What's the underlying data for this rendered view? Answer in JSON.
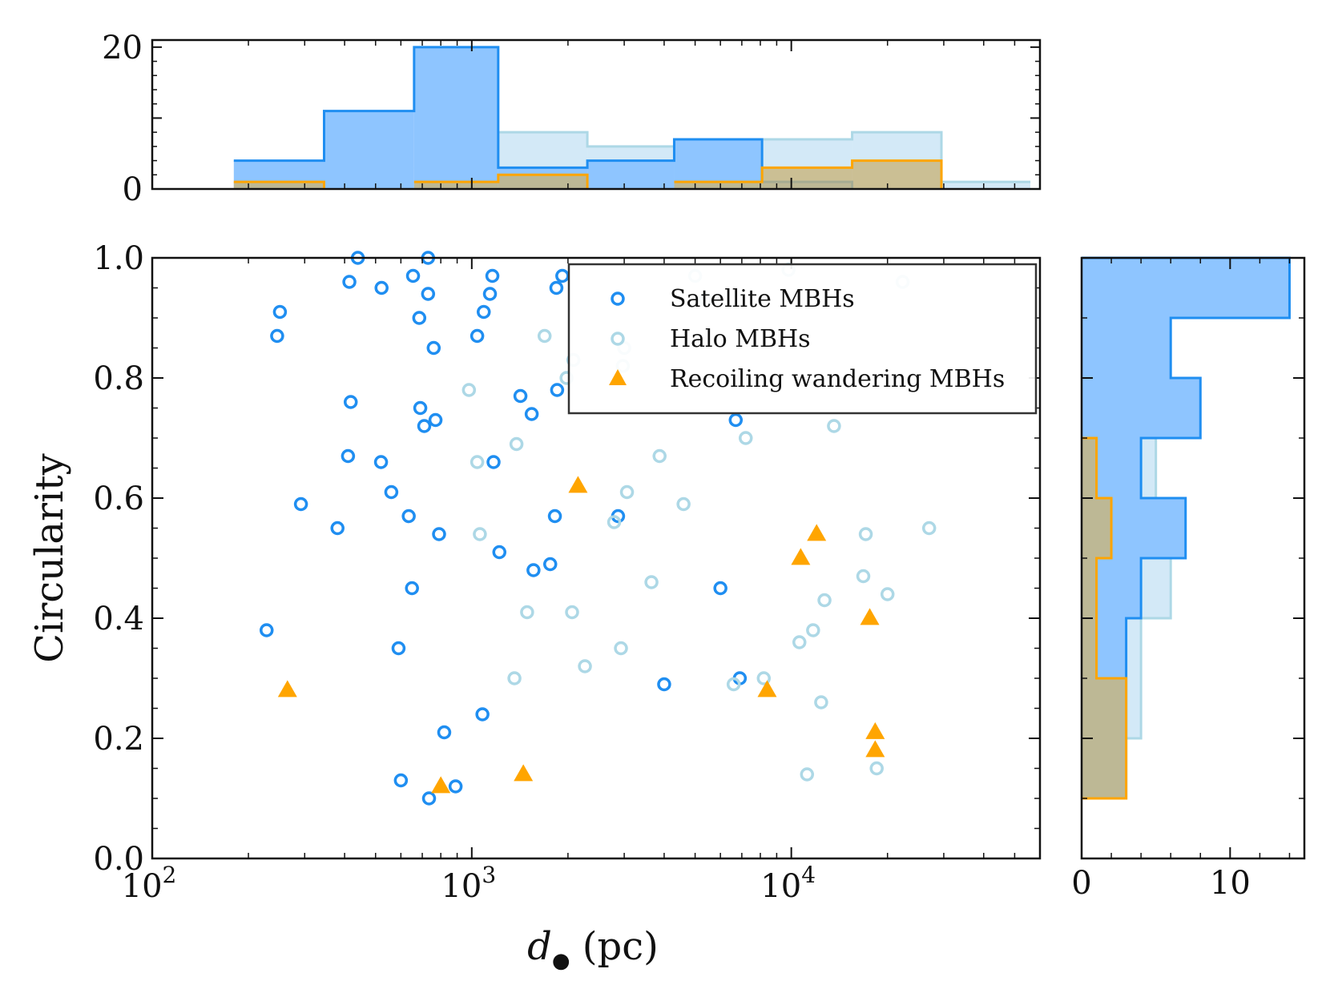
{
  "chart_data": {
    "type": "scatter",
    "layout": "scatter-with-marginal-histograms",
    "xlabel": "d",
    "xlabel_subscript": "●",
    "xlabel_unit": "(pc)",
    "ylabel": "Circularity",
    "xscale": "log",
    "xlim": [
      100,
      60000
    ],
    "ylim": [
      0,
      1
    ],
    "xticks": [
      {
        "value": 100,
        "base": "10",
        "exp": "2"
      },
      {
        "value": 1000,
        "base": "10",
        "exp": "3"
      },
      {
        "value": 10000,
        "base": "10",
        "exp": "4"
      }
    ],
    "yticks": [
      "0.0",
      "0.2",
      "0.4",
      "0.6",
      "0.8",
      "1.0"
    ],
    "colors": {
      "satellite": "#1f8ef1",
      "halo": "#add8e6",
      "recoil": "#ffa500",
      "satellite_fill": "#8ec5ff",
      "halo_fill": "#a8d3f0",
      "recoil_fill": "#c9b47a"
    },
    "legend": {
      "position": "top-right",
      "entries": [
        {
          "label": "Satellite MBHs",
          "marker": "open-circle",
          "color": "#1f8ef1"
        },
        {
          "label": "Halo MBHs",
          "marker": "open-circle",
          "color": "#add8e6"
        },
        {
          "label": "Recoiling wandering MBHs",
          "marker": "filled-triangle",
          "color": "#ffa500"
        }
      ]
    },
    "series": [
      {
        "name": "Satellite MBHs",
        "marker": "open-circle",
        "color": "#1f8ef1",
        "points": [
          [
            228,
            0.38
          ],
          [
            246,
            0.87
          ],
          [
            251,
            0.91
          ],
          [
            292,
            0.59
          ],
          [
            380,
            0.55
          ],
          [
            410,
            0.67
          ],
          [
            414,
            0.96
          ],
          [
            418,
            0.76
          ],
          [
            440,
            1.0
          ],
          [
            520,
            0.66
          ],
          [
            522,
            0.95
          ],
          [
            560,
            0.61
          ],
          [
            590,
            0.35
          ],
          [
            600,
            0.13
          ],
          [
            635,
            0.57
          ],
          [
            650,
            0.45
          ],
          [
            655,
            0.97
          ],
          [
            685,
            0.9
          ],
          [
            690,
            0.75
          ],
          [
            710,
            0.72
          ],
          [
            730,
            1.0
          ],
          [
            730,
            0.94
          ],
          [
            735,
            0.1
          ],
          [
            760,
            0.85
          ],
          [
            770,
            0.73
          ],
          [
            790,
            0.54
          ],
          [
            820,
            0.21
          ],
          [
            890,
            0.12
          ],
          [
            1040,
            0.87
          ],
          [
            1080,
            0.24
          ],
          [
            1090,
            0.91
          ],
          [
            1140,
            0.94
          ],
          [
            1160,
            0.97
          ],
          [
            1170,
            0.66
          ],
          [
            1220,
            0.51
          ],
          [
            1420,
            0.77
          ],
          [
            1540,
            0.74
          ],
          [
            1560,
            0.48
          ],
          [
            1760,
            0.49
          ],
          [
            1820,
            0.57
          ],
          [
            1840,
            0.95
          ],
          [
            1850,
            0.78
          ],
          [
            1920,
            0.97
          ],
          [
            2870,
            0.57
          ],
          [
            4000,
            0.29
          ],
          [
            6000,
            0.45
          ],
          [
            6700,
            0.73
          ],
          [
            6900,
            0.3
          ]
        ]
      },
      {
        "name": "Halo MBHs",
        "marker": "open-circle",
        "color": "#add8e6",
        "points": [
          [
            980,
            0.78
          ],
          [
            1040,
            0.66
          ],
          [
            1060,
            0.54
          ],
          [
            1360,
            0.3
          ],
          [
            1380,
            0.69
          ],
          [
            1490,
            0.41
          ],
          [
            1690,
            0.87
          ],
          [
            1980,
            0.8
          ],
          [
            2060,
            0.41
          ],
          [
            2080,
            0.83
          ],
          [
            2260,
            0.32
          ],
          [
            2790,
            0.56
          ],
          [
            2930,
            0.35
          ],
          [
            2970,
            0.82
          ],
          [
            3000,
            0.85
          ],
          [
            3060,
            0.61
          ],
          [
            3650,
            0.46
          ],
          [
            3870,
            0.67
          ],
          [
            4600,
            0.59
          ],
          [
            5000,
            0.97
          ],
          [
            5400,
            0.93
          ],
          [
            6600,
            0.29
          ],
          [
            7200,
            0.7
          ],
          [
            8200,
            0.3
          ],
          [
            9800,
            0.98
          ],
          [
            10600,
            0.36
          ],
          [
            11200,
            0.14
          ],
          [
            11700,
            0.38
          ],
          [
            12400,
            0.26
          ],
          [
            12700,
            0.43
          ],
          [
            13600,
            0.72
          ],
          [
            16800,
            0.47
          ],
          [
            17100,
            0.54
          ],
          [
            18500,
            0.15
          ],
          [
            20000,
            0.44
          ],
          [
            22300,
            0.96
          ],
          [
            27000,
            0.55
          ]
        ]
      },
      {
        "name": "Recoiling wandering MBHs",
        "marker": "filled-triangle",
        "color": "#ffa500",
        "points": [
          [
            265,
            0.28
          ],
          [
            800,
            0.12
          ],
          [
            1450,
            0.14
          ],
          [
            2150,
            0.62
          ],
          [
            8400,
            0.28
          ],
          [
            10700,
            0.5
          ],
          [
            12000,
            0.54
          ],
          [
            17600,
            0.4
          ],
          [
            18300,
            0.21
          ],
          [
            18300,
            0.18
          ]
        ]
      }
    ],
    "top_histogram": {
      "x_bin_edges": [
        180,
        345,
        660,
        1210,
        2300,
        4300,
        8100,
        15500,
        29500,
        56000
      ],
      "yticks": [
        "0",
        "20"
      ],
      "ylim": [
        0,
        21
      ],
      "series": [
        {
          "name": "Halo MBHs",
          "counts": [
            0,
            0,
            3,
            8,
            6,
            7,
            7,
            8,
            1
          ]
        },
        {
          "name": "Satellite MBHs",
          "counts": [
            4,
            11,
            20,
            3,
            4,
            7,
            1,
            0,
            0
          ]
        },
        {
          "name": "Recoiling wandering MBHs",
          "counts": [
            1,
            0,
            1,
            2,
            0,
            1,
            3,
            4,
            0
          ]
        }
      ]
    },
    "right_histogram": {
      "y_bin_edges": [
        0.1,
        0.2,
        0.3,
        0.4,
        0.5,
        0.6,
        0.7,
        0.8,
        0.9,
        1.0
      ],
      "xticks": [
        "0",
        "10"
      ],
      "xlim": [
        0,
        15
      ],
      "series": [
        {
          "name": "Halo MBHs",
          "counts": [
            2,
            4,
            4,
            6,
            5,
            5,
            4,
            4,
            3
          ]
        },
        {
          "name": "Satellite MBHs",
          "counts": [
            3,
            3,
            3,
            4,
            7,
            4,
            8,
            6,
            14
          ]
        },
        {
          "name": "Recoiling wandering MBHs",
          "counts": [
            3,
            3,
            1,
            1,
            2,
            1,
            0,
            0,
            0
          ]
        }
      ]
    }
  }
}
